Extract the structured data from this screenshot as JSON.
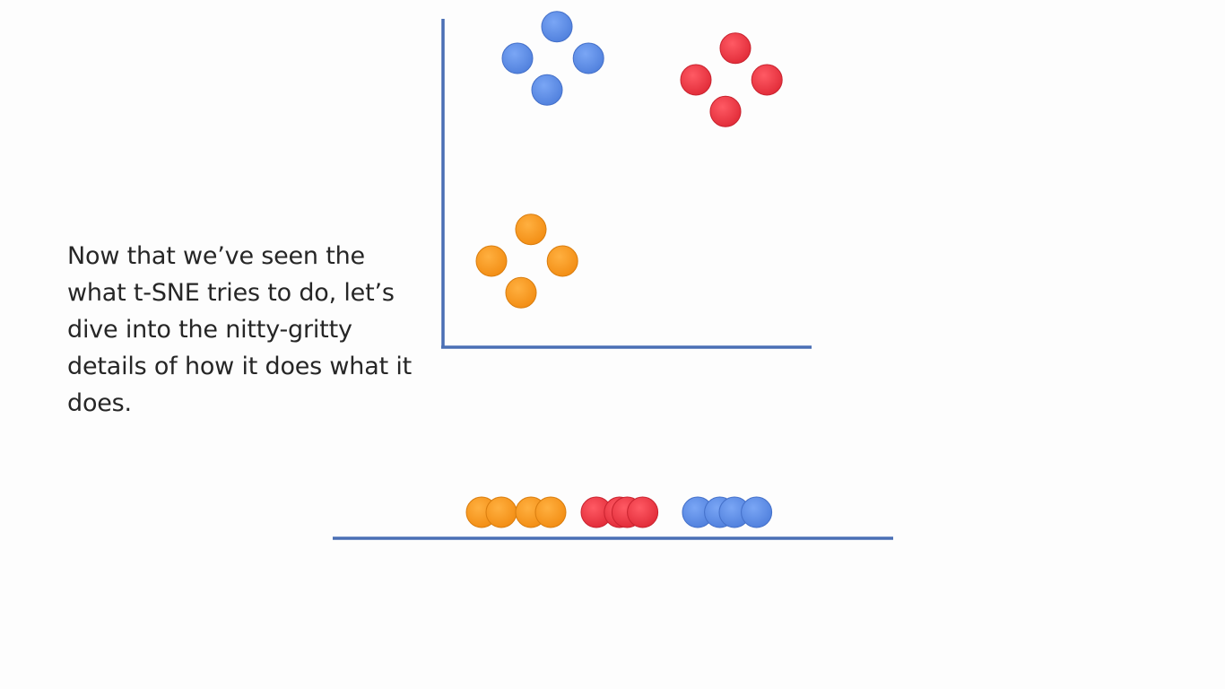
{
  "caption": "Now that we’ve seen the what t-SNE tries to do, let’s dive into the nitty-gritty details of how it does what it does.",
  "colors": {
    "axis": "#4a6fb5",
    "blue": "#5b8ee8",
    "red": "#ee3b47",
    "orange": "#f79a24"
  },
  "clusters_2d": [
    {
      "name": "blue",
      "points": [
        [
          0.0,
          1.0
        ],
        [
          1.0,
          1.75
        ],
        [
          1.8,
          1.0
        ],
        [
          0.75,
          0.25
        ]
      ]
    },
    {
      "name": "red",
      "points": [
        [
          0.0,
          1.0
        ],
        [
          1.0,
          1.75
        ],
        [
          1.8,
          1.0
        ],
        [
          0.75,
          0.25
        ]
      ]
    },
    {
      "name": "orange",
      "points": [
        [
          0.0,
          1.0
        ],
        [
          1.0,
          1.75
        ],
        [
          1.8,
          1.0
        ],
        [
          0.75,
          0.25
        ]
      ]
    }
  ],
  "line_1d": [
    {
      "name": "orange",
      "points": [
        0.0,
        0.4,
        1.0,
        1.4
      ]
    },
    {
      "name": "red",
      "points": [
        0.0,
        0.6,
        0.8,
        1.2
      ]
    },
    {
      "name": "blue",
      "points": [
        0.0,
        0.6,
        1.0,
        1.6
      ]
    }
  ]
}
